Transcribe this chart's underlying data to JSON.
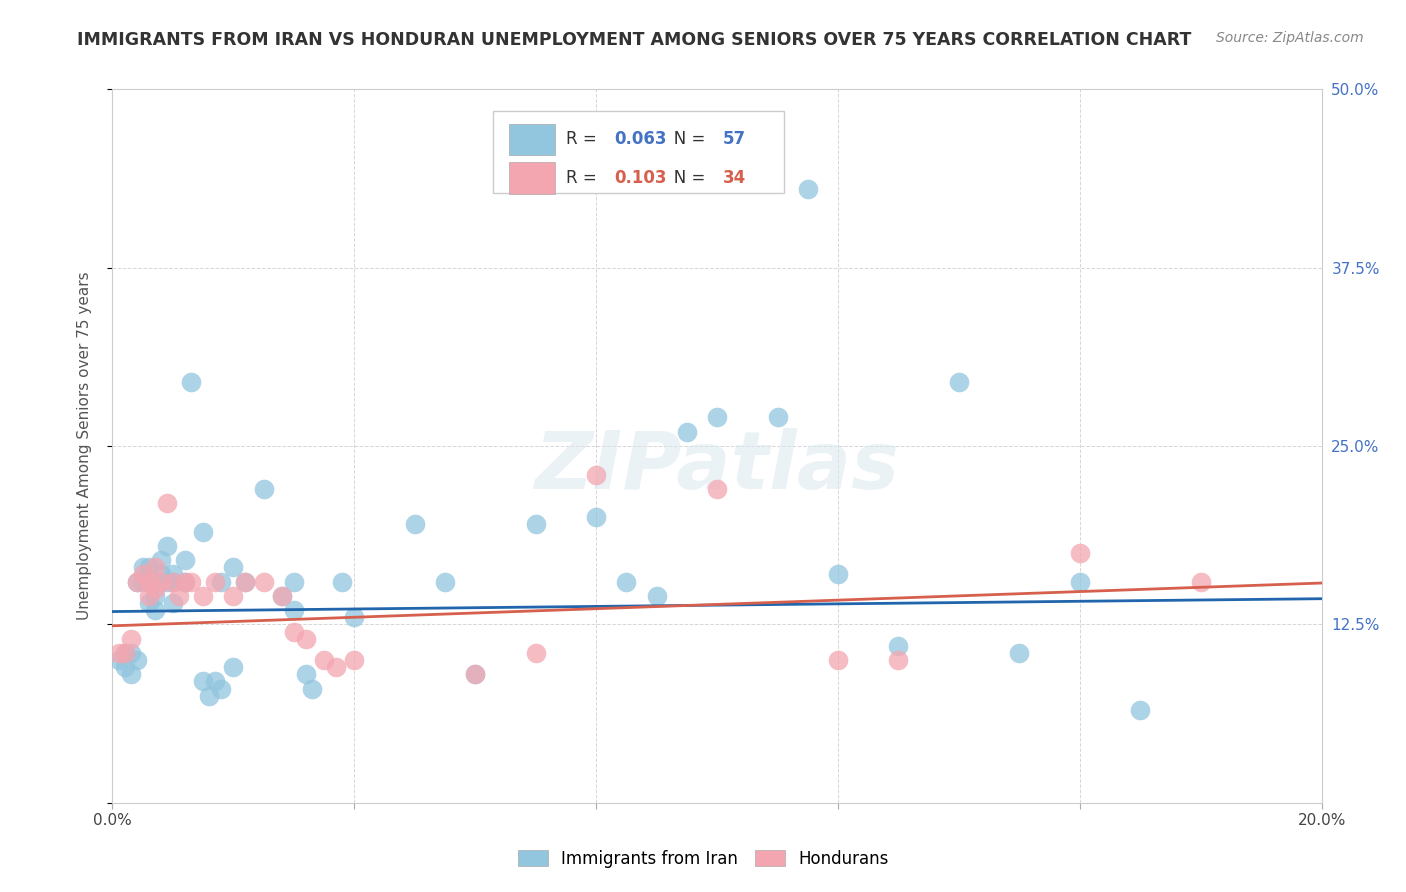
{
  "title": "IMMIGRANTS FROM IRAN VS HONDURAN UNEMPLOYMENT AMONG SENIORS OVER 75 YEARS CORRELATION CHART",
  "source": "Source: ZipAtlas.com",
  "ylabel": "Unemployment Among Seniors over 75 years",
  "xlim": [
    0.0,
    0.2
  ],
  "ylim": [
    0.0,
    0.5
  ],
  "xticks": [
    0.0,
    0.04,
    0.08,
    0.12,
    0.16,
    0.2
  ],
  "ytick_labels": [
    "",
    "12.5%",
    "25.0%",
    "37.5%",
    "50.0%"
  ],
  "yticks": [
    0.0,
    0.125,
    0.25,
    0.375,
    0.5
  ],
  "blue_scatter": [
    [
      0.001,
      0.1
    ],
    [
      0.002,
      0.105
    ],
    [
      0.002,
      0.095
    ],
    [
      0.003,
      0.09
    ],
    [
      0.003,
      0.105
    ],
    [
      0.004,
      0.1
    ],
    [
      0.004,
      0.155
    ],
    [
      0.005,
      0.165
    ],
    [
      0.005,
      0.155
    ],
    [
      0.006,
      0.165
    ],
    [
      0.006,
      0.14
    ],
    [
      0.007,
      0.135
    ],
    [
      0.007,
      0.145
    ],
    [
      0.008,
      0.17
    ],
    [
      0.008,
      0.16
    ],
    [
      0.009,
      0.18
    ],
    [
      0.009,
      0.155
    ],
    [
      0.01,
      0.155
    ],
    [
      0.01,
      0.14
    ],
    [
      0.01,
      0.16
    ],
    [
      0.012,
      0.155
    ],
    [
      0.012,
      0.17
    ],
    [
      0.013,
      0.295
    ],
    [
      0.015,
      0.19
    ],
    [
      0.015,
      0.085
    ],
    [
      0.016,
      0.075
    ],
    [
      0.017,
      0.085
    ],
    [
      0.018,
      0.08
    ],
    [
      0.018,
      0.155
    ],
    [
      0.02,
      0.165
    ],
    [
      0.02,
      0.095
    ],
    [
      0.022,
      0.155
    ],
    [
      0.025,
      0.22
    ],
    [
      0.028,
      0.145
    ],
    [
      0.03,
      0.135
    ],
    [
      0.03,
      0.155
    ],
    [
      0.032,
      0.09
    ],
    [
      0.033,
      0.08
    ],
    [
      0.038,
      0.155
    ],
    [
      0.04,
      0.13
    ],
    [
      0.05,
      0.195
    ],
    [
      0.055,
      0.155
    ],
    [
      0.06,
      0.09
    ],
    [
      0.07,
      0.195
    ],
    [
      0.08,
      0.2
    ],
    [
      0.085,
      0.155
    ],
    [
      0.09,
      0.145
    ],
    [
      0.095,
      0.26
    ],
    [
      0.1,
      0.27
    ],
    [
      0.11,
      0.27
    ],
    [
      0.115,
      0.43
    ],
    [
      0.12,
      0.16
    ],
    [
      0.13,
      0.11
    ],
    [
      0.14,
      0.295
    ],
    [
      0.15,
      0.105
    ],
    [
      0.16,
      0.155
    ],
    [
      0.17,
      0.065
    ]
  ],
  "pink_scatter": [
    [
      0.001,
      0.105
    ],
    [
      0.002,
      0.105
    ],
    [
      0.003,
      0.115
    ],
    [
      0.004,
      0.155
    ],
    [
      0.005,
      0.16
    ],
    [
      0.006,
      0.155
    ],
    [
      0.006,
      0.145
    ],
    [
      0.007,
      0.15
    ],
    [
      0.007,
      0.165
    ],
    [
      0.008,
      0.155
    ],
    [
      0.009,
      0.21
    ],
    [
      0.01,
      0.155
    ],
    [
      0.011,
      0.145
    ],
    [
      0.012,
      0.155
    ],
    [
      0.013,
      0.155
    ],
    [
      0.015,
      0.145
    ],
    [
      0.017,
      0.155
    ],
    [
      0.02,
      0.145
    ],
    [
      0.022,
      0.155
    ],
    [
      0.025,
      0.155
    ],
    [
      0.028,
      0.145
    ],
    [
      0.03,
      0.12
    ],
    [
      0.032,
      0.115
    ],
    [
      0.035,
      0.1
    ],
    [
      0.037,
      0.095
    ],
    [
      0.04,
      0.1
    ],
    [
      0.06,
      0.09
    ],
    [
      0.07,
      0.105
    ],
    [
      0.08,
      0.23
    ],
    [
      0.1,
      0.22
    ],
    [
      0.12,
      0.1
    ],
    [
      0.13,
      0.1
    ],
    [
      0.16,
      0.175
    ],
    [
      0.18,
      0.155
    ]
  ],
  "blue_trend_x": [
    0.0,
    0.2
  ],
  "blue_trend_y": [
    0.134,
    0.143
  ],
  "pink_trend_x": [
    0.0,
    0.2
  ],
  "pink_trend_y": [
    0.124,
    0.154
  ],
  "blue_dot_color": "#92c5de",
  "pink_dot_color": "#f4a6b0",
  "blue_line_color": "#2166ac",
  "pink_line_color": "#d6604d",
  "background_color": "#ffffff",
  "title_fontsize": 12.5,
  "source_fontsize": 10,
  "legend_r1": "0.063",
  "legend_n1": "57",
  "legend_r2": "0.103",
  "legend_n2": "34"
}
